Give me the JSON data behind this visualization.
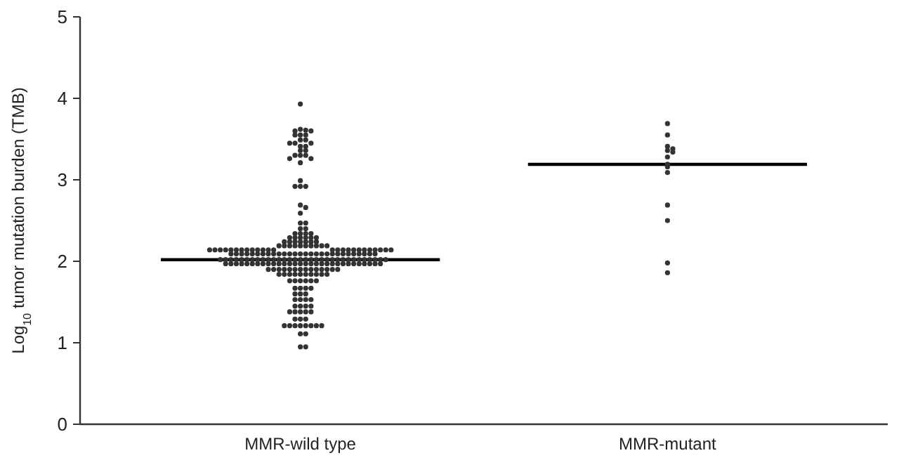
{
  "chart_data": {
    "type": "scatter",
    "ylabel": "Log$_{10}$ tumor mutation burden (TMB)",
    "categories": [
      "MMR-wild type",
      "MMR-mutant"
    ],
    "ylim": [
      0,
      5
    ],
    "yticks": [
      0,
      1,
      2,
      3,
      4,
      5
    ],
    "grid": false,
    "marker": "circle",
    "series": [
      {
        "color": "#333333",
        "x": [
          "MMR-wild type",
          "MMR-wild type",
          "MMR-wild type",
          "MMR-wild type",
          "MMR-wild type",
          "MMR-wild type",
          "MMR-wild type",
          "MMR-wild type",
          "MMR-wild type",
          "MMR-wild type",
          "MMR-wild type",
          "MMR-wild type",
          "MMR-wild type",
          "MMR-wild type",
          "MMR-wild type",
          "MMR-wild type",
          "MMR-wild type",
          "MMR-wild type",
          "MMR-wild type",
          "MMR-wild type",
          "MMR-wild type",
          "MMR-wild type",
          "MMR-wild type",
          "MMR-wild type",
          "MMR-wild type",
          "MMR-wild type",
          "MMR-wild type",
          "MMR-wild type",
          "MMR-wild type",
          "MMR-wild type",
          "MMR-wild type",
          "MMR-wild type",
          "MMR-wild type",
          "MMR-wild type",
          "MMR-wild type",
          "MMR-wild type",
          "MMR-wild type",
          "MMR-wild type",
          "MMR-wild type",
          "MMR-wild type",
          "MMR-wild type",
          "MMR-wild type",
          "MMR-wild type",
          "MMR-wild type",
          "MMR-wild type",
          "MMR-wild type",
          "MMR-wild type",
          "MMR-wild type",
          "MMR-wild type",
          "MMR-wild type",
          "MMR-wild type",
          "MMR-wild type",
          "MMR-wild type",
          "MMR-wild type",
          "MMR-wild type",
          "MMR-wild type",
          "MMR-wild type",
          "MMR-wild type",
          "MMR-wild type",
          "MMR-wild type",
          "MMR-wild type",
          "MMR-wild type",
          "MMR-wild type",
          "MMR-wild type",
          "MMR-wild type",
          "MMR-wild type",
          "MMR-wild type",
          "MMR-wild type",
          "MMR-wild type",
          "MMR-wild type",
          "MMR-wild type",
          "MMR-wild type",
          "MMR-wild type",
          "MMR-wild type",
          "MMR-wild type",
          "MMR-wild type",
          "MMR-wild type",
          "MMR-wild type",
          "MMR-wild type",
          "MMR-wild type",
          "MMR-wild type",
          "MMR-wild type",
          "MMR-wild type",
          "MMR-wild type",
          "MMR-wild type",
          "MMR-wild type",
          "MMR-wild type",
          "MMR-wild type",
          "MMR-wild type",
          "MMR-wild type",
          "MMR-wild type",
          "MMR-wild type",
          "MMR-wild type",
          "MMR-wild type",
          "MMR-wild type",
          "MMR-wild type",
          "MMR-wild type",
          "MMR-wild type",
          "MMR-wild type",
          "MMR-wild type",
          "MMR-wild type",
          "MMR-wild type",
          "MMR-wild type",
          "MMR-wild type",
          "MMR-wild type",
          "MMR-wild type",
          "MMR-wild type",
          "MMR-wild type",
          "MMR-wild type",
          "MMR-wild type",
          "MMR-wild type",
          "MMR-wild type",
          "MMR-wild type",
          "MMR-wild type",
          "MMR-wild type",
          "MMR-wild type",
          "MMR-wild type",
          "MMR-wild type",
          "MMR-wild type",
          "MMR-wild type",
          "MMR-wild type",
          "MMR-wild type",
          "MMR-wild type",
          "MMR-wild type",
          "MMR-wild type",
          "MMR-wild type",
          "MMR-wild type",
          "MMR-wild type",
          "MMR-wild type",
          "MMR-wild type",
          "MMR-wild type",
          "MMR-wild type",
          "MMR-wild type",
          "MMR-wild type",
          "MMR-wild type",
          "MMR-wild type",
          "MMR-wild type",
          "MMR-wild type",
          "MMR-wild type",
          "MMR-wild type",
          "MMR-wild type",
          "MMR-wild type",
          "MMR-wild type",
          "MMR-wild type",
          "MMR-wild type",
          "MMR-wild type",
          "MMR-wild type",
          "MMR-wild type",
          "MMR-wild type",
          "MMR-wild type",
          "MMR-wild type",
          "MMR-wild type",
          "MMR-wild type",
          "MMR-wild type",
          "MMR-wild type",
          "MMR-wild type",
          "MMR-wild type",
          "MMR-wild type",
          "MMR-wild type",
          "MMR-wild type",
          "MMR-wild type",
          "MMR-wild type",
          "MMR-wild type",
          "MMR-wild type",
          "MMR-wild type",
          "MMR-wild type",
          "MMR-wild type",
          "MMR-wild type",
          "MMR-wild type",
          "MMR-wild type",
          "MMR-wild type",
          "MMR-wild type",
          "MMR-wild type",
          "MMR-wild type",
          "MMR-wild type",
          "MMR-wild type",
          "MMR-wild type",
          "MMR-wild type",
          "MMR-wild type",
          "MMR-wild type",
          "MMR-wild type",
          "MMR-wild type",
          "MMR-wild type",
          "MMR-wild type",
          "MMR-wild type",
          "MMR-wild type",
          "MMR-wild type",
          "MMR-wild type",
          "MMR-wild type",
          "MMR-wild type",
          "MMR-wild type",
          "MMR-wild type",
          "MMR-wild type",
          "MMR-wild type",
          "MMR-wild type",
          "MMR-wild type",
          "MMR-wild type",
          "MMR-wild type",
          "MMR-wild type",
          "MMR-wild type",
          "MMR-wild type",
          "MMR-wild type",
          "MMR-wild type",
          "MMR-wild type",
          "MMR-wild type",
          "MMR-wild type",
          "MMR-wild type",
          "MMR-wild type",
          "MMR-wild type",
          "MMR-wild type",
          "MMR-wild type",
          "MMR-wild type",
          "MMR-wild type",
          "MMR-wild type",
          "MMR-wild type",
          "MMR-wild type",
          "MMR-wild type",
          "MMR-wild type",
          "MMR-wild type",
          "MMR-wild type",
          "MMR-wild type",
          "MMR-wild type",
          "MMR-wild type",
          "MMR-wild type",
          "MMR-wild type",
          "MMR-wild type",
          "MMR-wild type",
          "MMR-wild type",
          "MMR-wild type",
          "MMR-wild type",
          "MMR-wild type",
          "MMR-wild type",
          "MMR-wild type",
          "MMR-wild type",
          "MMR-wild type",
          "MMR-wild type",
          "MMR-wild type",
          "MMR-wild type",
          "MMR-wild type",
          "MMR-wild type",
          "MMR-wild type"
        ],
        "values": [
          3.93,
          3.62,
          3.61,
          3.6,
          3.6,
          3.55,
          3.55,
          3.55,
          3.49,
          3.49,
          3.45,
          3.45,
          3.45,
          3.41,
          3.41,
          3.36,
          3.36,
          3.3,
          3.3,
          3.3,
          3.26,
          3.26,
          3.21,
          2.99,
          2.92,
          2.92,
          2.92,
          2.69,
          2.66,
          2.59,
          2.47,
          2.47,
          2.4,
          2.4,
          2.34,
          2.34,
          2.34,
          2.34,
          2.29,
          2.29,
          2.29,
          2.29,
          2.29,
          2.29,
          2.24,
          2.24,
          2.24,
          2.24,
          2.24,
          2.24,
          2.24,
          2.19,
          2.19,
          2.19,
          2.19,
          2.19,
          2.19,
          2.19,
          2.19,
          2.19,
          2.19,
          2.14,
          2.14,
          2.14,
          2.14,
          2.14,
          2.14,
          2.14,
          2.14,
          2.14,
          2.14,
          2.14,
          2.14,
          2.14,
          2.14,
          2.14,
          2.14,
          2.14,
          2.14,
          2.14,
          2.14,
          2.14,
          2.14,
          2.14,
          2.14,
          2.14,
          2.09,
          2.09,
          2.09,
          2.09,
          2.09,
          2.09,
          2.09,
          2.09,
          2.09,
          2.09,
          2.09,
          2.09,
          2.09,
          2.09,
          2.09,
          2.09,
          2.09,
          2.09,
          2.09,
          2.09,
          2.09,
          2.09,
          2.09,
          2.09,
          2.09,
          2.09,
          2.09,
          2.09,
          2.02,
          2.02,
          2.02,
          2.02,
          2.02,
          2.02,
          2.02,
          2.02,
          2.02,
          2.02,
          2.02,
          2.02,
          2.02,
          2.02,
          2.02,
          2.02,
          2.02,
          2.02,
          2.02,
          2.02,
          2.02,
          2.02,
          2.02,
          2.02,
          2.02,
          2.02,
          2.02,
          2.02,
          2.02,
          2.02,
          2.02,
          2.02,
          1.97,
          1.97,
          1.97,
          1.97,
          1.97,
          1.97,
          1.97,
          1.97,
          1.97,
          1.97,
          1.97,
          1.97,
          1.97,
          1.97,
          1.97,
          1.97,
          1.97,
          1.97,
          1.97,
          1.97,
          1.97,
          1.97,
          1.97,
          1.97,
          1.97,
          1.97,
          1.97,
          1.97,
          1.97,
          1.97,
          1.9,
          1.9,
          1.9,
          1.9,
          1.9,
          1.9,
          1.9,
          1.9,
          1.9,
          1.9,
          1.9,
          1.9,
          1.9,
          1.9,
          1.84,
          1.84,
          1.84,
          1.84,
          1.84,
          1.84,
          1.84,
          1.84,
          1.84,
          1.84,
          1.76,
          1.76,
          1.76,
          1.76,
          1.76,
          1.76,
          1.67,
          1.67,
          1.67,
          1.67,
          1.6,
          1.6,
          1.6,
          1.53,
          1.53,
          1.53,
          1.53,
          1.45,
          1.45,
          1.45,
          1.45,
          1.38,
          1.38,
          1.38,
          1.38,
          1.38,
          1.29,
          1.29,
          1.29,
          1.21,
          1.21,
          1.21,
          1.21,
          1.21,
          1.21,
          1.21,
          1.21,
          1.11,
          1.11,
          0.95,
          0.95
        ]
      },
      {
        "color": "#333333",
        "x": [
          "MMR-mutant",
          "MMR-mutant",
          "MMR-mutant",
          "MMR-mutant",
          "MMR-mutant",
          "MMR-mutant",
          "MMR-mutant",
          "MMR-mutant",
          "MMR-mutant",
          "MMR-mutant",
          "MMR-mutant",
          "MMR-mutant",
          "MMR-mutant",
          "MMR-mutant"
        ],
        "values": [
          3.69,
          3.55,
          3.41,
          3.38,
          3.36,
          3.34,
          3.28,
          3.19,
          3.16,
          3.09,
          2.69,
          2.5,
          1.98,
          1.86
        ]
      }
    ],
    "ref_lines": [
      {
        "axis": "y",
        "value": 2.02,
        "color": "#000000"
      },
      {
        "axis": "y",
        "value": 3.19,
        "color": "#000000"
      }
    ]
  }
}
